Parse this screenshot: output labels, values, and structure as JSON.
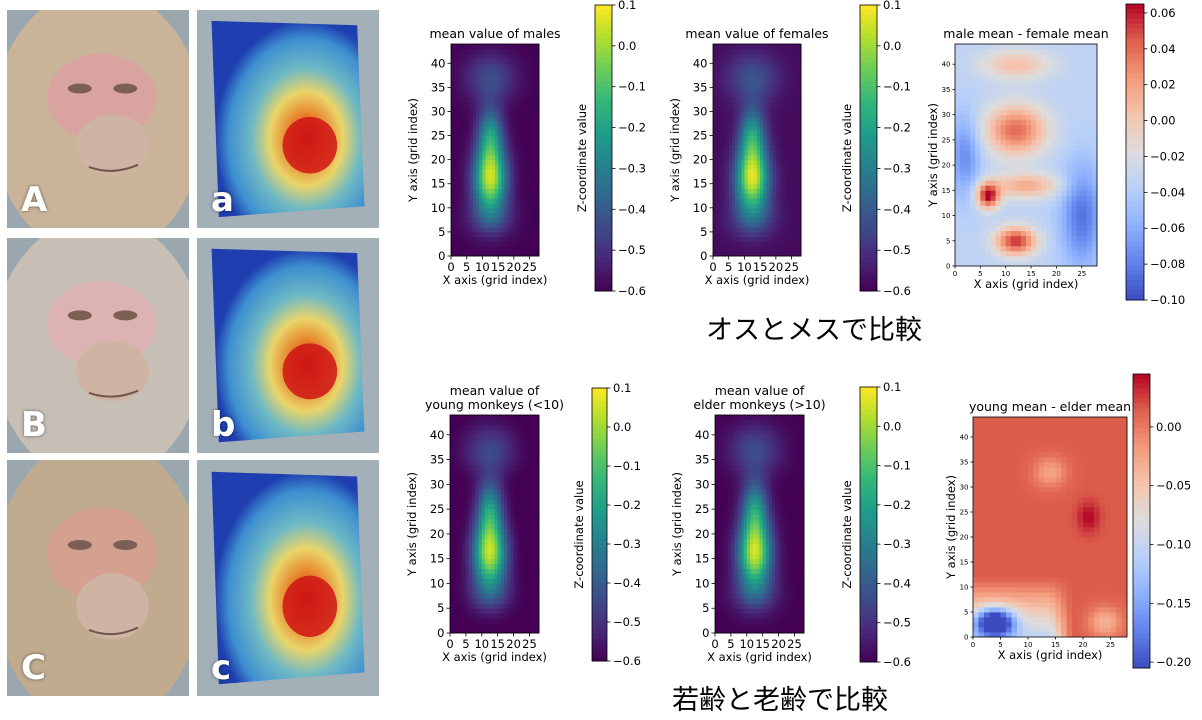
{
  "photos": [
    {
      "label": "A",
      "kind": "photo",
      "tint": "#c9b49a",
      "skin": "#d9a3a0"
    },
    {
      "label": "a",
      "kind": "mesh"
    },
    {
      "label": "B",
      "kind": "photo",
      "tint": "#c7bfb6",
      "skin": "#dcb3b3"
    },
    {
      "label": "b",
      "kind": "mesh"
    },
    {
      "label": "C",
      "kind": "photo",
      "tint": "#c0ab8e",
      "skin": "#d4a08f"
    },
    {
      "label": "c",
      "kind": "mesh"
    }
  ],
  "captions": {
    "sex": "オスとメスで比較",
    "age": "若齢と老齢で比較"
  },
  "chart_data": [
    {
      "type": "heatmap",
      "id": "males",
      "title": [
        "mean value of males"
      ],
      "xlabel": "X axis (grid index)",
      "ylabel": "Y axis (grid index)",
      "colorbar_label": "Z-coordinate value",
      "colormap": "viridis",
      "xlim": [
        0,
        28
      ],
      "ylim": [
        0,
        44
      ],
      "vlim": [
        -0.6,
        0.1
      ],
      "x_ticks": [
        0,
        5,
        10,
        15,
        20,
        25
      ],
      "y_ticks": [
        0,
        5,
        10,
        15,
        20,
        25,
        30,
        35,
        40
      ],
      "cbar_ticks": [
        "0.1",
        "0.0",
        "−0.1",
        "−0.2",
        "−0.3",
        "−0.4",
        "−0.5",
        "−0.6"
      ],
      "peak": {
        "x": 12.5,
        "y": 16,
        "value": 0.05
      }
    },
    {
      "type": "heatmap",
      "id": "females",
      "title": [
        "mean value of females"
      ],
      "xlabel": "X axis (grid index)",
      "ylabel": "Y axis (grid index)",
      "colorbar_label": "Z-coordinate value",
      "colormap": "viridis",
      "xlim": [
        0,
        28
      ],
      "ylim": [
        0,
        44
      ],
      "vlim": [
        -0.6,
        0.1
      ],
      "x_ticks": [
        0,
        5,
        10,
        15,
        20,
        25
      ],
      "y_ticks": [
        0,
        5,
        10,
        15,
        20,
        25,
        30,
        35,
        40
      ],
      "cbar_ticks": [
        "0.1",
        "0.0",
        "−0.1",
        "−0.2",
        "−0.3",
        "−0.4",
        "−0.5",
        "−0.6"
      ],
      "peak": {
        "x": 12.5,
        "y": 16,
        "value": 0.05
      }
    },
    {
      "type": "heatmap",
      "id": "male-female",
      "title": [
        "male mean - female mean"
      ],
      "xlabel": "X axis (grid index)",
      "ylabel": "Y axis (grid index)",
      "colorbar_label": "",
      "colormap": "coolwarm",
      "xlim": [
        0,
        28
      ],
      "ylim": [
        0,
        44
      ],
      "vlim": [
        -0.1,
        0.065
      ],
      "x_ticks": [
        0,
        5,
        10,
        15,
        20,
        25
      ],
      "y_ticks": [
        0,
        5,
        10,
        15,
        20,
        25,
        30,
        35,
        40
      ],
      "cbar_ticks": [
        "0.06",
        "0.04",
        "0.02",
        "0.00",
        "−0.02",
        "−0.04",
        "−0.06",
        "−0.08",
        "−0.10"
      ],
      "cbar_values": [
        0.06,
        0.04,
        0.02,
        0.0,
        -0.02,
        -0.04,
        -0.06,
        -0.08,
        -0.1
      ]
    },
    {
      "type": "heatmap",
      "id": "young",
      "title": [
        "mean value of",
        "young monkeys (<10)"
      ],
      "xlabel": "X axis (grid index)",
      "ylabel": "Y axis (grid index)",
      "colorbar_label": "Z-coordinate value",
      "colormap": "viridis",
      "xlim": [
        0,
        28
      ],
      "ylim": [
        0,
        44
      ],
      "vlim": [
        -0.6,
        0.1
      ],
      "x_ticks": [
        0,
        5,
        10,
        15,
        20,
        25
      ],
      "y_ticks": [
        0,
        5,
        10,
        15,
        20,
        25,
        30,
        35,
        40
      ],
      "cbar_ticks": [
        "0.1",
        "0.0",
        "−0.1",
        "−0.2",
        "−0.3",
        "−0.4",
        "−0.5",
        "−0.6"
      ],
      "peak": {
        "x": 12.5,
        "y": 16,
        "value": 0.05
      }
    },
    {
      "type": "heatmap",
      "id": "elder",
      "title": [
        "mean value of",
        "elder monkeys (>10)"
      ],
      "xlabel": "X axis (grid index)",
      "ylabel": "Y axis (grid index)",
      "colorbar_label": "Z-coordinate value",
      "colormap": "viridis",
      "xlim": [
        0,
        28
      ],
      "ylim": [
        0,
        44
      ],
      "vlim": [
        -0.6,
        0.1
      ],
      "x_ticks": [
        0,
        5,
        10,
        15,
        20,
        25
      ],
      "y_ticks": [
        0,
        5,
        10,
        15,
        20,
        25,
        30,
        35,
        40
      ],
      "cbar_ticks": [
        "0.1",
        "0.0",
        "−0.1",
        "−0.2",
        "−0.3",
        "−0.4",
        "−0.5",
        "−0.6"
      ],
      "peak": {
        "x": 12.5,
        "y": 16,
        "value": 0.05
      }
    },
    {
      "type": "heatmap",
      "id": "young-elder",
      "title": [
        "young mean - elder mean"
      ],
      "xlabel": "X axis (grid index)",
      "ylabel": "Y axis (grid index)",
      "colorbar_label": "",
      "colormap": "coolwarm",
      "xlim": [
        0,
        28
      ],
      "ylim": [
        0,
        44
      ],
      "vlim": [
        -0.205,
        0.045
      ],
      "x_ticks": [
        0,
        5,
        10,
        15,
        20,
        25
      ],
      "y_ticks": [
        0,
        5,
        10,
        15,
        20,
        25,
        30,
        35,
        40
      ],
      "cbar_ticks": [
        "0.00",
        "−0.05",
        "−0.10",
        "−0.15",
        "−0.20"
      ],
      "cbar_values": [
        0.0,
        -0.05,
        -0.1,
        -0.15,
        -0.2
      ]
    }
  ]
}
